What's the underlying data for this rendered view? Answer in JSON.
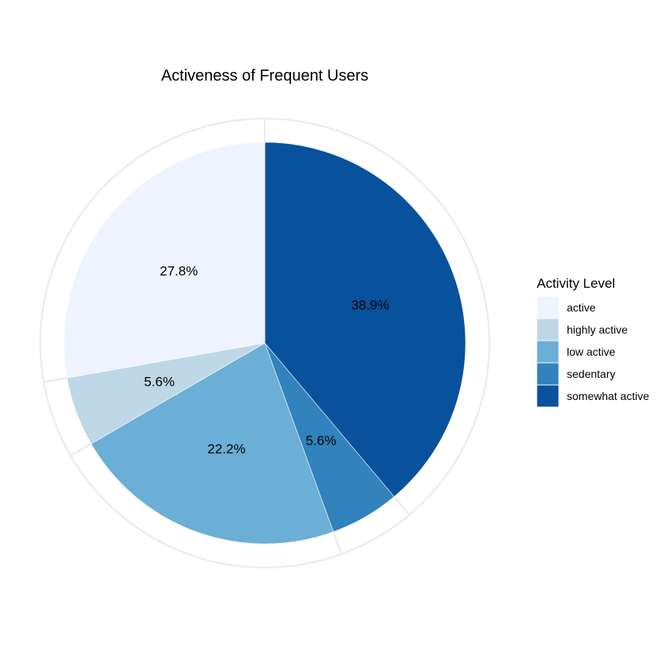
{
  "chart_data": {
    "type": "pie",
    "title": "Activeness of Frequent Users",
    "legend_title": "Activity Level",
    "legend_position": "right",
    "direction": "clockwise",
    "start_angle": "top",
    "slices": [
      {
        "label": "somewhat active",
        "value": 38.9,
        "display": "38.9%",
        "color": "#08519C"
      },
      {
        "label": "sedentary",
        "value": 5.6,
        "display": "5.6%",
        "color": "#3182BD"
      },
      {
        "label": "low active",
        "value": 22.2,
        "display": "22.2%",
        "color": "#6BAED6"
      },
      {
        "label": "highly active",
        "value": 5.6,
        "display": "5.6%",
        "color": "#BDD7E7"
      },
      {
        "label": "active",
        "value": 27.8,
        "display": "27.8%",
        "color": "#EFF3FF"
      }
    ],
    "legend_entries": [
      {
        "label": "active",
        "color": "#EFF3FF"
      },
      {
        "label": "highly active",
        "color": "#BDD7E7"
      },
      {
        "label": "low active",
        "color": "#6BAED6"
      },
      {
        "label": "sedentary",
        "color": "#3182BD"
      },
      {
        "label": "somewhat active",
        "color": "#08519C"
      }
    ],
    "grid": true
  }
}
